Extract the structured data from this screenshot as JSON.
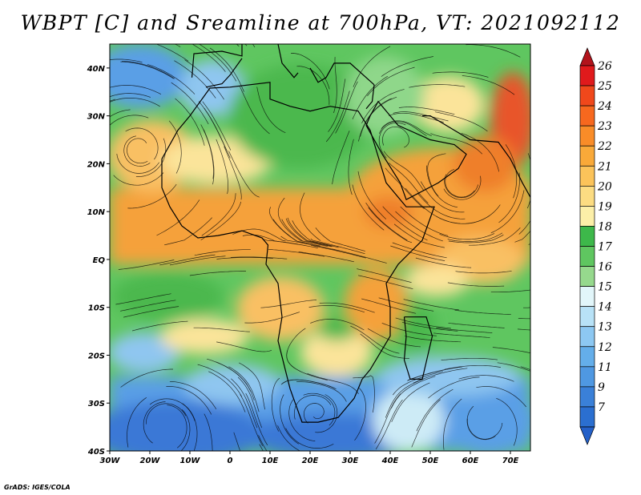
{
  "title": "WBPT [C] and Sreamline at 700hPa, VT: 2021092112",
  "credit": "GrADS: IGES/COLA",
  "map": {
    "x_labels": [
      "30W",
      "20W",
      "10W",
      "0",
      "10E",
      "20E",
      "30E",
      "40E",
      "50E",
      "60E",
      "70E"
    ],
    "y_labels": [
      "40N",
      "30N",
      "20N",
      "10N",
      "EQ",
      "10S",
      "20S",
      "30S",
      "40S"
    ],
    "lon_range": [
      -30,
      75
    ],
    "lat_range": [
      -40,
      45
    ]
  },
  "colorbar": {
    "labels": [
      "26",
      "25",
      "24",
      "23",
      "22",
      "21",
      "20",
      "19",
      "18",
      "17",
      "16",
      "15",
      "14",
      "13",
      "12",
      "11",
      "9",
      "7"
    ],
    "colors": [
      "#e01a1c",
      "#f0481b",
      "#f7681e",
      "#f98c28",
      "#f9a939",
      "#fbc35a",
      "#fcdc82",
      "#fcefa8",
      "#3db84a",
      "#5fc660",
      "#96d98d",
      "#e2f6fa",
      "#b8e2f7",
      "#8dc8f2",
      "#64aeea",
      "#4f98e2",
      "#3a80d8",
      "#2b6fd0"
    ],
    "top_color": "#b2141c",
    "bottom_color": "#2460c8"
  },
  "field_colors": {
    "very_cold": "#3b78d6",
    "cold": "#5a9fe6",
    "cool": "#8fc6f0",
    "mild": "#cdebf6",
    "green": "#4cb84e",
    "light_green": "#8fd78a",
    "yellow": "#fbe49a",
    "light_orange": "#f9c063",
    "orange": "#f5a13a",
    "dark_orange": "#ef7f2a",
    "red": "#e8542a"
  }
}
